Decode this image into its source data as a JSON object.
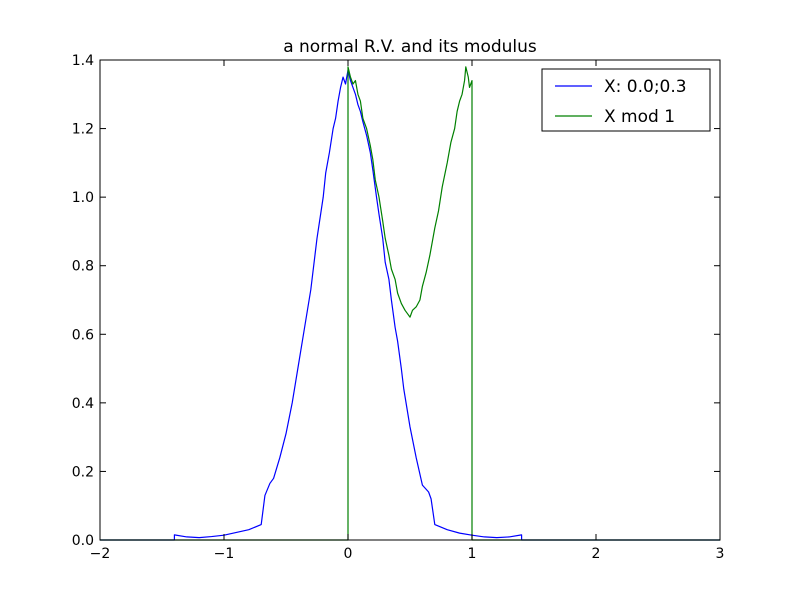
{
  "chart_data": {
    "type": "line",
    "title": "a normal R.V. and its modulus",
    "xlabel": "",
    "ylabel": "",
    "xlim": [
      -2,
      3
    ],
    "ylim": [
      0,
      1.4
    ],
    "xticks": [
      "−2",
      "−1",
      "0",
      "1",
      "2",
      "3"
    ],
    "xtick_values": [
      -2,
      -1,
      0,
      1,
      2,
      3
    ],
    "yticks": [
      "0.0",
      "0.2",
      "0.4",
      "0.6",
      "0.8",
      "1.0",
      "1.2",
      "1.4"
    ],
    "ytick_values": [
      0,
      0.2,
      0.4,
      0.6,
      0.8,
      1.0,
      1.2,
      1.4
    ],
    "grid": false,
    "legend_position": "top-right",
    "series": [
      {
        "name": "X: 0.0;0.3",
        "color": "#0000ff",
        "points": [
          [
            -2.0,
            0.0
          ],
          [
            -1.4,
            0.0
          ],
          [
            -1.4,
            0.015
          ],
          [
            -1.3,
            0.009
          ],
          [
            -1.2,
            0.007
          ],
          [
            -1.1,
            0.01
          ],
          [
            -1.0,
            0.014
          ],
          [
            -0.9,
            0.022
          ],
          [
            -0.8,
            0.03
          ],
          [
            -0.7,
            0.045
          ],
          [
            -0.67,
            0.13
          ],
          [
            -0.63,
            0.165
          ],
          [
            -0.6,
            0.18
          ],
          [
            -0.55,
            0.24
          ],
          [
            -0.5,
            0.31
          ],
          [
            -0.45,
            0.4
          ],
          [
            -0.4,
            0.51
          ],
          [
            -0.35,
            0.62
          ],
          [
            -0.3,
            0.73
          ],
          [
            -0.25,
            0.88
          ],
          [
            -0.2,
            1.0
          ],
          [
            -0.18,
            1.07
          ],
          [
            -0.15,
            1.13
          ],
          [
            -0.12,
            1.2
          ],
          [
            -0.1,
            1.23
          ],
          [
            -0.08,
            1.28
          ],
          [
            -0.06,
            1.32
          ],
          [
            -0.04,
            1.35
          ],
          [
            -0.02,
            1.33
          ],
          [
            0.0,
            1.37
          ],
          [
            0.02,
            1.34
          ],
          [
            0.04,
            1.32
          ],
          [
            0.06,
            1.3
          ],
          [
            0.08,
            1.27
          ],
          [
            0.1,
            1.25
          ],
          [
            0.12,
            1.22
          ],
          [
            0.15,
            1.18
          ],
          [
            0.18,
            1.13
          ],
          [
            0.2,
            1.08
          ],
          [
            0.23,
            1.0
          ],
          [
            0.25,
            0.95
          ],
          [
            0.28,
            0.88
          ],
          [
            0.3,
            0.81
          ],
          [
            0.33,
            0.76
          ],
          [
            0.35,
            0.7
          ],
          [
            0.38,
            0.62
          ],
          [
            0.4,
            0.58
          ],
          [
            0.43,
            0.5
          ],
          [
            0.45,
            0.44
          ],
          [
            0.5,
            0.33
          ],
          [
            0.55,
            0.24
          ],
          [
            0.6,
            0.16
          ],
          [
            0.65,
            0.14
          ],
          [
            0.67,
            0.12
          ],
          [
            0.7,
            0.045
          ],
          [
            0.8,
            0.03
          ],
          [
            0.9,
            0.02
          ],
          [
            1.0,
            0.014
          ],
          [
            1.1,
            0.009
          ],
          [
            1.2,
            0.007
          ],
          [
            1.3,
            0.009
          ],
          [
            1.4,
            0.015
          ],
          [
            1.4,
            0.0
          ],
          [
            3.0,
            0.0
          ]
        ]
      },
      {
        "name": "X mod 1",
        "color": "#008000",
        "points": [
          [
            -2.0,
            0.0
          ],
          [
            0.0,
            0.0
          ],
          [
            0.0,
            1.38
          ],
          [
            0.02,
            1.35
          ],
          [
            0.04,
            1.33
          ],
          [
            0.06,
            1.34
          ],
          [
            0.08,
            1.3
          ],
          [
            0.1,
            1.28
          ],
          [
            0.12,
            1.23
          ],
          [
            0.15,
            1.2
          ],
          [
            0.18,
            1.15
          ],
          [
            0.2,
            1.11
          ],
          [
            0.22,
            1.05
          ],
          [
            0.25,
            1.0
          ],
          [
            0.28,
            0.93
          ],
          [
            0.3,
            0.88
          ],
          [
            0.33,
            0.83
          ],
          [
            0.35,
            0.79
          ],
          [
            0.38,
            0.76
          ],
          [
            0.4,
            0.72
          ],
          [
            0.43,
            0.69
          ],
          [
            0.46,
            0.67
          ],
          [
            0.48,
            0.66
          ],
          [
            0.5,
            0.65
          ],
          [
            0.52,
            0.67
          ],
          [
            0.55,
            0.68
          ],
          [
            0.58,
            0.7
          ],
          [
            0.6,
            0.74
          ],
          [
            0.63,
            0.78
          ],
          [
            0.66,
            0.83
          ],
          [
            0.7,
            0.91
          ],
          [
            0.73,
            0.96
          ],
          [
            0.76,
            1.03
          ],
          [
            0.8,
            1.1
          ],
          [
            0.83,
            1.16
          ],
          [
            0.86,
            1.2
          ],
          [
            0.88,
            1.25
          ],
          [
            0.9,
            1.28
          ],
          [
            0.92,
            1.3
          ],
          [
            0.94,
            1.34
          ],
          [
            0.95,
            1.38
          ],
          [
            0.97,
            1.35
          ],
          [
            0.98,
            1.32
          ],
          [
            1.0,
            1.34
          ],
          [
            1.0,
            0.0
          ],
          [
            3.0,
            0.0
          ]
        ]
      }
    ]
  }
}
